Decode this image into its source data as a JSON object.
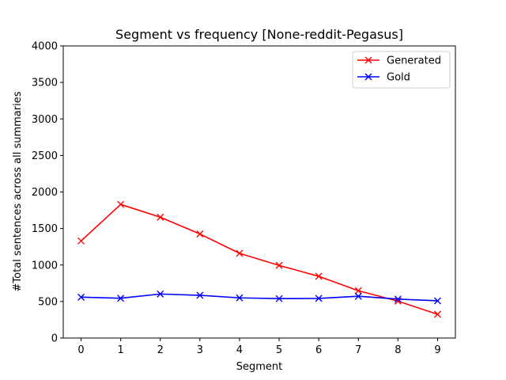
{
  "chart_data": {
    "type": "line",
    "title": "Segment vs frequency [None-reddit-Pegasus]",
    "xlabel": "Segment",
    "ylabel": "#Total sentences across all summaries",
    "x": [
      0,
      1,
      2,
      3,
      4,
      5,
      6,
      7,
      8,
      9
    ],
    "xlim": [
      -0.45,
      9.45
    ],
    "ylim": [
      0,
      4000
    ],
    "yticks": [
      0,
      500,
      1000,
      1500,
      2000,
      2500,
      3000,
      3500,
      4000
    ],
    "xticks": [
      0,
      1,
      2,
      3,
      4,
      5,
      6,
      7,
      8,
      9
    ],
    "grid": false,
    "legend_position": "top-right",
    "marker": "x",
    "series": [
      {
        "name": "Generated",
        "color": "#ff0000",
        "values": [
          1330,
          1830,
          1655,
          1425,
          1160,
          995,
          845,
          648,
          505,
          325
        ]
      },
      {
        "name": "Gold",
        "color": "#0000ff",
        "values": [
          560,
          545,
          603,
          585,
          550,
          540,
          543,
          572,
          533,
          510
        ]
      }
    ]
  }
}
